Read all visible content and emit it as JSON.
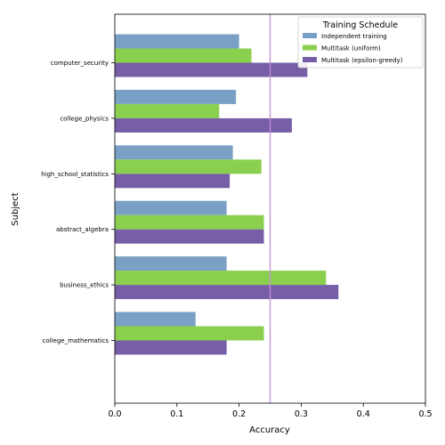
{
  "chart_data": {
    "type": "bar",
    "orientation": "horizontal",
    "xlabel": "Accuracy",
    "ylabel": "Subject",
    "xlim": [
      0,
      0.5
    ],
    "xticks": [
      "0.0",
      "0.1",
      "0.2",
      "0.3",
      "0.4",
      "0.5"
    ],
    "categories": [
      "computer_security",
      "college_physics",
      "high_school_statistics",
      "abstract_algebra",
      "business_ethics",
      "college_mathematics"
    ],
    "series": [
      {
        "name": "Independent training",
        "color": "#7aa1c5",
        "values": [
          0.2,
          0.195,
          0.19,
          0.18,
          0.18,
          0.13
        ]
      },
      {
        "name": "Multitask (uniform)",
        "color": "#8bcf4f",
        "values": [
          0.22,
          0.168,
          0.236,
          0.24,
          0.34,
          0.24
        ]
      },
      {
        "name": "Multitask (epsilon-greedy)",
        "color": "#765fa6",
        "values": [
          0.31,
          0.285,
          0.185,
          0.24,
          0.36,
          0.18
        ]
      }
    ],
    "reference_line": {
      "value": 0.25,
      "color": "#c58fd6"
    },
    "legend": {
      "title": "Training Schedule",
      "placement": "top-right"
    },
    "grid": false
  }
}
